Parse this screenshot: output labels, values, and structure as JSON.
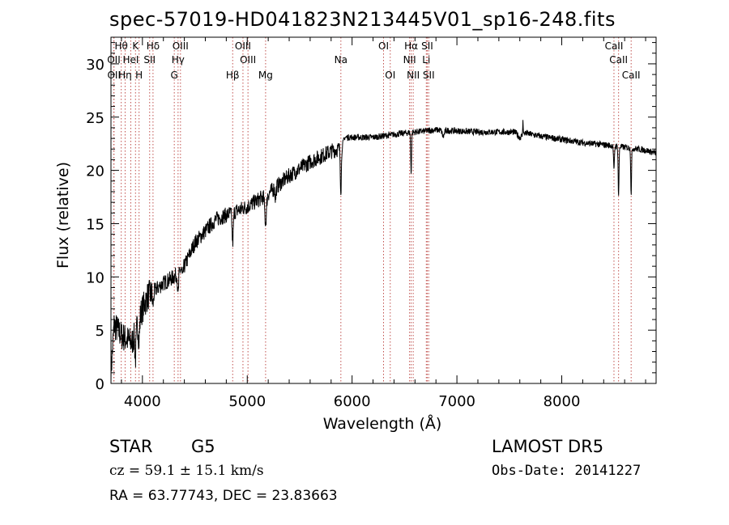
{
  "header": {
    "title": "spec-57019-HD041823N213445V01_sp16-248.fits"
  },
  "info": {
    "class": "STAR",
    "subclass": "G5",
    "survey": "LAMOST DR5",
    "cz": "cz = 59.1 ± 15.1 km/s",
    "obs_date": "Obs-Date: 20141227",
    "coords": "RA =  63.77743, DEC =  23.83663"
  },
  "chart_data": {
    "type": "line",
    "title": "spec-57019-HD041823N213445V01_sp16-248.fits",
    "xlabel": "Wavelength (Å)",
    "ylabel": "Flux (relative)",
    "xlim": [
      3700,
      8900
    ],
    "ylim": [
      0,
      32.5
    ],
    "xticks": [
      4000,
      5000,
      6000,
      7000,
      8000
    ],
    "yticks": [
      0,
      5,
      10,
      15,
      20,
      25,
      30
    ],
    "line_color": "#000000",
    "marker_color": "#c0504d",
    "continuum_knots": [
      [
        3700,
        1.0
      ],
      [
        3730,
        5.5
      ],
      [
        3800,
        4.5
      ],
      [
        3900,
        3.8
      ],
      [
        3980,
        6.5
      ],
      [
        4050,
        8.2
      ],
      [
        4200,
        9.4
      ],
      [
        4300,
        10.0
      ],
      [
        4400,
        11.0
      ],
      [
        4500,
        13.2
      ],
      [
        4700,
        15.4
      ],
      [
        4900,
        16.2
      ],
      [
        5000,
        16.6
      ],
      [
        5200,
        17.8
      ],
      [
        5400,
        19.5
      ],
      [
        5600,
        20.8
      ],
      [
        5800,
        21.8
      ],
      [
        5900,
        22.1
      ],
      [
        5930,
        23.1
      ],
      [
        6200,
        23.1
      ],
      [
        6500,
        23.5
      ],
      [
        6800,
        23.8
      ],
      [
        7200,
        23.6
      ],
      [
        7600,
        23.6
      ],
      [
        7800,
        23.2
      ],
      [
        8200,
        22.6
      ],
      [
        8500,
        22.3
      ],
      [
        8800,
        21.9
      ],
      [
        8900,
        21.6
      ]
    ],
    "absorption_features": [
      [
        3934,
        2.5,
        6
      ],
      [
        3968,
        2.0,
        6
      ],
      [
        4101,
        1.2,
        6
      ],
      [
        4340,
        2.2,
        5
      ],
      [
        4383,
        1.0,
        5
      ],
      [
        4861,
        2.8,
        6
      ],
      [
        5175,
        2.6,
        8
      ],
      [
        5270,
        1.0,
        5
      ],
      [
        5893,
        3.8,
        5
      ],
      [
        6563,
        3.8,
        4
      ],
      [
        6870,
        0.6,
        10
      ],
      [
        7600,
        0.5,
        20
      ],
      [
        8498,
        2.4,
        4
      ],
      [
        8542,
        4.6,
        4
      ],
      [
        8662,
        4.2,
        4
      ]
    ],
    "emission_spikes": [
      [
        7630,
        1.6,
        2
      ]
    ],
    "lines": [
      {
        "label": "Hθ",
        "wave": 3798,
        "row": 0
      },
      {
        "label": "K",
        "wave": 3934,
        "row": 0
      },
      {
        "label": "Hδ",
        "wave": 4101,
        "row": 0
      },
      {
        "label": "OIII",
        "wave": 4363,
        "row": 0
      },
      {
        "label": "OIII",
        "wave": 4959,
        "row": 0
      },
      {
        "label": "OI",
        "wave": 6300,
        "row": 0
      },
      {
        "label": "Hα",
        "wave": 6563,
        "row": 0
      },
      {
        "label": "SII",
        "wave": 6717,
        "row": 0
      },
      {
        "label": "CaII",
        "wave": 8498,
        "row": 0
      },
      {
        "label": "OII",
        "wave": 3727,
        "row": 1
      },
      {
        "label": "HeI",
        "wave": 3889,
        "row": 1
      },
      {
        "label": "SII",
        "wave": 4069,
        "row": 1
      },
      {
        "label": "Hγ",
        "wave": 4340,
        "row": 1
      },
      {
        "label": "OIII",
        "wave": 5007,
        "row": 1
      },
      {
        "label": "Na",
        "wave": 5893,
        "row": 1
      },
      {
        "label": "NII",
        "wave": 6548,
        "row": 1
      },
      {
        "label": "Li",
        "wave": 6708,
        "row": 1
      },
      {
        "label": "CaII",
        "wave": 8542,
        "row": 1
      },
      {
        "label": "OII",
        "wave": 3729,
        "row": 2
      },
      {
        "label": "Hη",
        "wave": 3835,
        "row": 2
      },
      {
        "label": "H",
        "wave": 3968,
        "row": 2
      },
      {
        "label": "G",
        "wave": 4304,
        "row": 2
      },
      {
        "label": "Hβ",
        "wave": 4861,
        "row": 2
      },
      {
        "label": "Mg",
        "wave": 5175,
        "row": 2
      },
      {
        "label": "OI",
        "wave": 6364,
        "row": 2
      },
      {
        "label": "NII",
        "wave": 6583,
        "row": 2
      },
      {
        "label": "SII",
        "wave": 6731,
        "row": 2
      },
      {
        "label": "CaII",
        "wave": 8662,
        "row": 2
      }
    ]
  }
}
